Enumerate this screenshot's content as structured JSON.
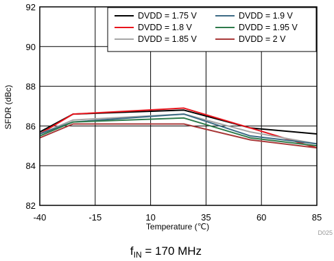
{
  "chart_data": {
    "type": "line",
    "xlabel": "Temperature (℃)",
    "ylabel": "SFDR (dBc)",
    "xlim": [
      -40,
      85
    ],
    "ylim": [
      82,
      92
    ],
    "xticks": [
      -40,
      -15,
      10,
      35,
      60,
      85
    ],
    "yticks": [
      82,
      84,
      86,
      88,
      90,
      92
    ],
    "grid": true,
    "legend_position": "top-right",
    "x": [
      -40,
      -25,
      25,
      55,
      85
    ],
    "series": [
      {
        "name": "DVDD = 1.75 V",
        "color": "#000000",
        "values": [
          85.7,
          86.6,
          86.8,
          85.9,
          85.6
        ]
      },
      {
        "name": "DVDD = 1.8 V",
        "color": "#e8141c",
        "values": [
          85.6,
          86.6,
          86.9,
          85.9,
          84.9
        ]
      },
      {
        "name": "DVDD = 1.85 V",
        "color": "#a6a6a6",
        "values": [
          85.6,
          86.3,
          86.6,
          85.7,
          85.1
        ]
      },
      {
        "name": "DVDD = 1.9 V",
        "color": "#3b6a84",
        "values": [
          85.6,
          86.2,
          86.6,
          85.5,
          85.1
        ]
      },
      {
        "name": "DVDD = 1.95 V",
        "color": "#2d7a4a",
        "values": [
          85.5,
          86.2,
          86.4,
          85.4,
          85.0
        ]
      },
      {
        "name": "DVDD = 2 V",
        "color": "#a83838",
        "values": [
          85.4,
          86.1,
          86.1,
          85.3,
          84.9
        ]
      }
    ]
  },
  "caption": {
    "prefix": "f",
    "subscript": "IN",
    "suffix": " = 170 MHz"
  },
  "figure_code": "D025"
}
